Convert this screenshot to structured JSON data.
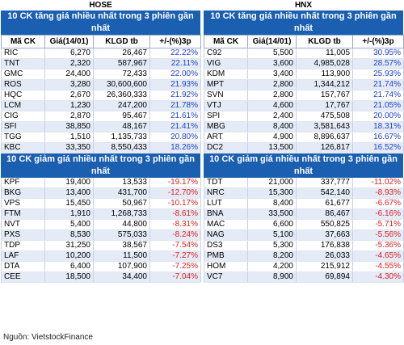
{
  "left": {
    "exchange": "HOSE",
    "gainers_title": "10 CK tăng giá nhiều nhất trong 3 phiên gần nhất",
    "losers_title": "10 CK giảm giá nhiều nhất trong 3 phiên gần nhất",
    "headers": [
      "Mã CK",
      "Giá(14/01)",
      "KLGD tb",
      "+/-(%)3p"
    ],
    "gainers": [
      [
        "RIC",
        "6,270",
        "26,467",
        "22.22%"
      ],
      [
        "TNT",
        "2,320",
        "587,967",
        "22.11%"
      ],
      [
        "GMC",
        "24,400",
        "72,433",
        "22.00%"
      ],
      [
        "ROS",
        "3,280",
        "30,600,600",
        "21.93%"
      ],
      [
        "HQC",
        "2,670",
        "26,360,333",
        "21.92%"
      ],
      [
        "LCM",
        "1,230",
        "247,200",
        "21.78%"
      ],
      [
        "CIG",
        "2,870",
        "95,467",
        "21.61%"
      ],
      [
        "SFI",
        "38,850",
        "48,167",
        "21.41%"
      ],
      [
        "TGG",
        "1,510",
        "1,135,733",
        "20.80%"
      ],
      [
        "KBC",
        "33,350",
        "8,550,433",
        "18.26%"
      ]
    ],
    "losers": [
      [
        "KPF",
        "19,400",
        "13,533",
        "-19.17%"
      ],
      [
        "BKG",
        "13,400",
        "431,700",
        "-12.70%"
      ],
      [
        "VPS",
        "15,450",
        "50,967",
        "-10.17%"
      ],
      [
        "FTM",
        "1,910",
        "1,268,733",
        "-8.61%"
      ],
      [
        "NVT",
        "5,400",
        "44,800",
        "-8.31%"
      ],
      [
        "PXS",
        "8,530",
        "575,033",
        "-8.24%"
      ],
      [
        "TDP",
        "31,250",
        "38,567",
        "-7.54%"
      ],
      [
        "LAF",
        "10,200",
        "11,500",
        "-7.27%"
      ],
      [
        "DTA",
        "6,400",
        "107,900",
        "-7.25%"
      ],
      [
        "CEE",
        "18,500",
        "34,400",
        "-7.04%"
      ]
    ]
  },
  "right": {
    "exchange": "HNX",
    "gainers_title": "10 CK tăng giá nhiều nhất trong 3 phiên gần nhất",
    "losers_title": "10 CK giảm giá nhiều nhất trong 3 phiên gần nhất",
    "headers": [
      "Mã CK",
      "Giá(14/01)",
      "KLGD tb",
      "+/-(%)3p"
    ],
    "gainers": [
      [
        "C92",
        "5,500",
        "11,005",
        "30.95%"
      ],
      [
        "VIG",
        "3,600",
        "4,985,028",
        "28.57%"
      ],
      [
        "KDM",
        "3,400",
        "113,900",
        "25.93%"
      ],
      [
        "MPT",
        "2,800",
        "1,344,212",
        "21.74%"
      ],
      [
        "SVN",
        "2,800",
        "157,767",
        "21.74%"
      ],
      [
        "VTJ",
        "4,600",
        "17,767",
        "21.05%"
      ],
      [
        "SPI",
        "2,400",
        "475,508",
        "20.00%"
      ],
      [
        "MBG",
        "8,400",
        "3,581,643",
        "18.31%"
      ],
      [
        "ART",
        "4,900",
        "8,896,637",
        "16.67%"
      ],
      [
        "DC2",
        "13,500",
        "126,817",
        "16.52%"
      ]
    ],
    "losers": [
      [
        "TDT",
        "21,000",
        "337,777",
        "-11.02%"
      ],
      [
        "NRC",
        "15,300",
        "542,140",
        "-8.93%"
      ],
      [
        "LUT",
        "8,400",
        "61,677",
        "-6.67%"
      ],
      [
        "BNA",
        "33,500",
        "86,467",
        "-6.16%"
      ],
      [
        "MAC",
        "6,600",
        "550,825",
        "-5.71%"
      ],
      [
        "NAG",
        "5,100",
        "37,663",
        "-5.56%"
      ],
      [
        "DS3",
        "5,300",
        "176,838",
        "-5.36%"
      ],
      [
        "PMB",
        "8,200",
        "26,033",
        "-4.65%"
      ],
      [
        "HOM",
        "4,200",
        "215,912",
        "-4.55%"
      ],
      [
        "VC7",
        "8,900",
        "69,894",
        "-4.30%"
      ]
    ]
  },
  "source": "Nguồn: VietstockFinance",
  "colors": {
    "band": "#1b5fb0",
    "up": "#1a3fcc",
    "down": "#e02020",
    "alt_row": "#e4ebf6"
  }
}
